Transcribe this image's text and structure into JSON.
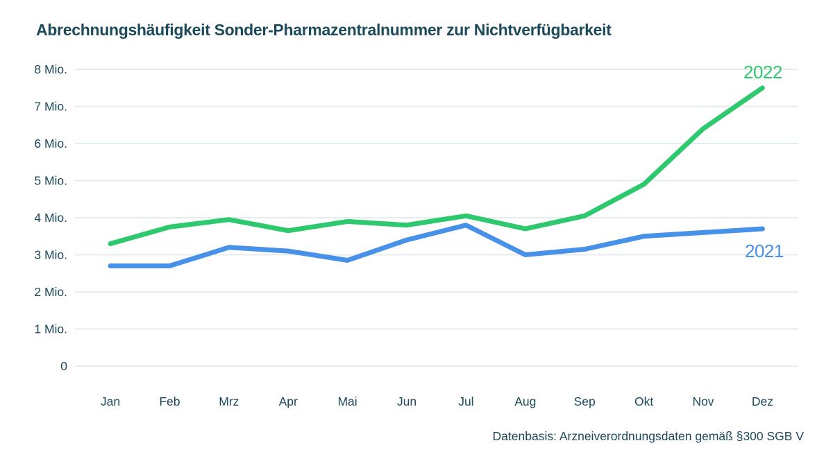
{
  "page": {
    "title": "Abrechnungshäufigkeit Sonder-Pharmazentralnummer zur Nichtverfügbarkeit",
    "source_note": "Datenbasis: Arzneiverordnungsdaten gemäß §300 SGB V"
  },
  "colors": {
    "title_text": "#1c4a5a",
    "axis_text": "#1c4a5a",
    "gridline": "#e6edee",
    "background": "#ffffff",
    "series_2022": "#2ec96e",
    "series_2021": "#4891e8"
  },
  "chart_data": {
    "type": "line",
    "title": "Abrechnungshäufigkeit Sonder-Pharmazentralnummer zur Nichtverfügbarkeit",
    "source_note": "Datenbasis: Arzneiverordnungsdaten gemäß §300 SGB V",
    "categories": [
      "Jan",
      "Feb",
      "Mrz",
      "Apr",
      "Mai",
      "Jun",
      "Jul",
      "Aug",
      "Sep",
      "Okt",
      "Nov",
      "Dez"
    ],
    "unit": "Mio.",
    "ylim": [
      0,
      8
    ],
    "y_tick_values": [
      8,
      7,
      6,
      5,
      4,
      3,
      2,
      1,
      0
    ],
    "y_tick_labels": [
      "8 Mio.",
      "7 Mio.",
      "6 Mio.",
      "5 Mio.",
      "4 Mio.",
      "3 Mio.",
      "2 Mio.",
      "1 Mio.",
      "0"
    ],
    "grid": true,
    "legend_position": "inline-right-of-line-ends",
    "series": [
      {
        "name": "2022",
        "color": "#2ec96e",
        "values": [
          3.3,
          3.75,
          3.95,
          3.65,
          3.9,
          3.8,
          4.05,
          3.7,
          4.05,
          4.9,
          6.4,
          7.5
        ]
      },
      {
        "name": "2021",
        "color": "#4891e8",
        "values": [
          2.7,
          2.7,
          3.2,
          3.1,
          2.85,
          3.4,
          3.8,
          3.0,
          3.15,
          3.5,
          3.6,
          3.7
        ]
      }
    ]
  }
}
